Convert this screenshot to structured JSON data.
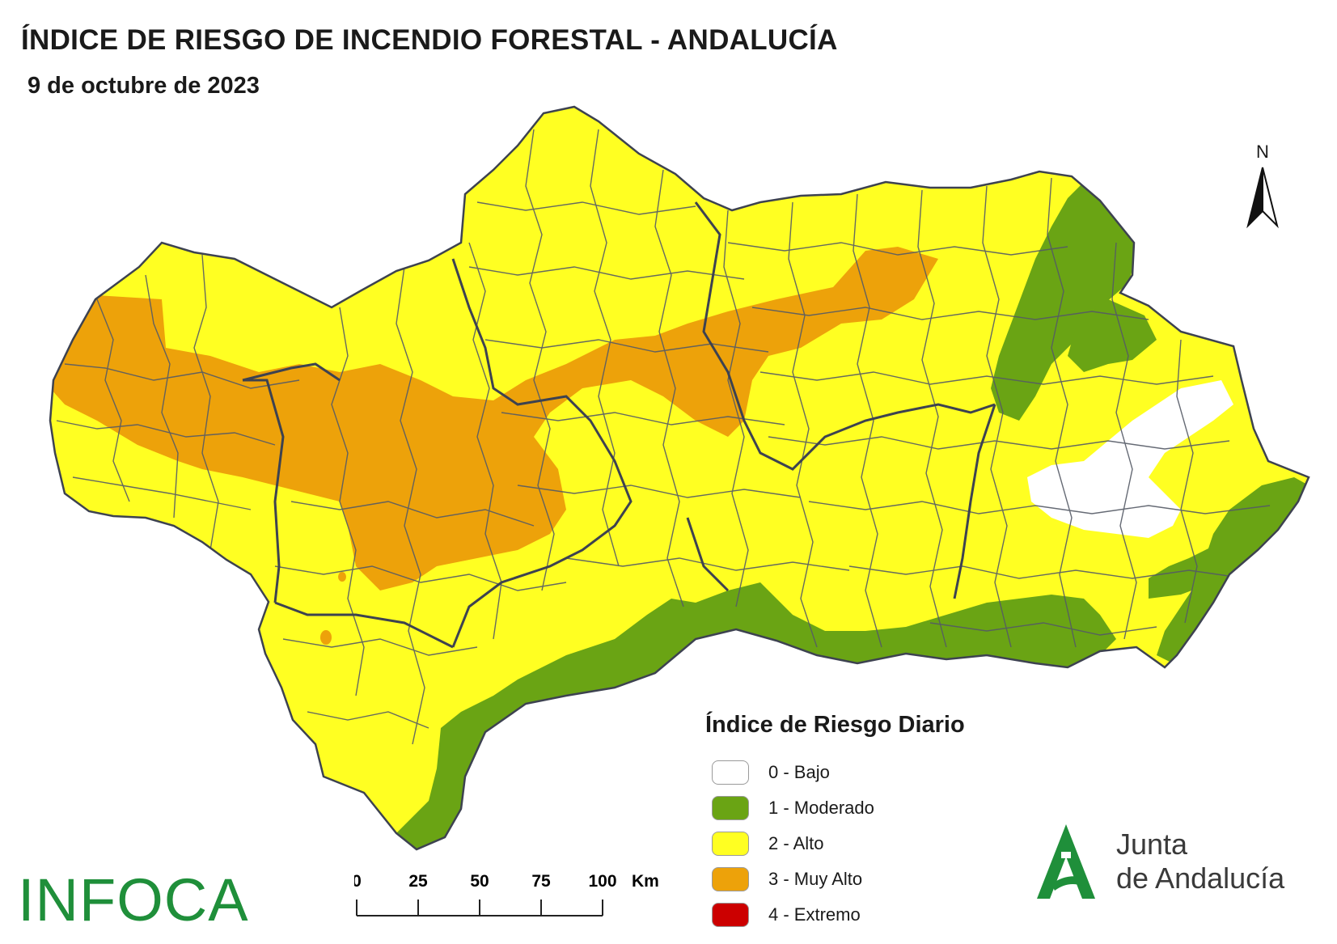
{
  "header": {
    "title": "ÍNDICE DE RIESGO DE INCENDIO FORESTAL - ANDALUCÍA",
    "date": "9 de octubre de 2023"
  },
  "north_arrow": {
    "label": "N",
    "icon": "north-arrow-icon"
  },
  "legend": {
    "title": "Índice de Riesgo Diario",
    "items": [
      {
        "label": "0 - Bajo",
        "color": "#ffffff"
      },
      {
        "label": "1 - Moderado",
        "color": "#6aa414"
      },
      {
        "label": "2 - Alto",
        "color": "#ffff22"
      },
      {
        "label": "3 - Muy Alto",
        "color": "#eda20a"
      },
      {
        "label": "4 - Extremo",
        "color": "#cc0000"
      }
    ]
  },
  "scale_bar": {
    "ticks": [
      "0",
      "25",
      "50",
      "75",
      "100"
    ],
    "unit": "Km"
  },
  "logos": {
    "infoca": "INFOCA",
    "junta_line1": "Junta",
    "junta_line2": "de Andalucía",
    "infoca_color": "#1f8f3a",
    "junta_color": "#1f8f3a"
  },
  "map_colors": {
    "alto": "#ffff22",
    "muy_alto": "#eda20a",
    "moderado": "#6aa414",
    "bajo": "#ffffff",
    "boundary": "#555a66"
  }
}
